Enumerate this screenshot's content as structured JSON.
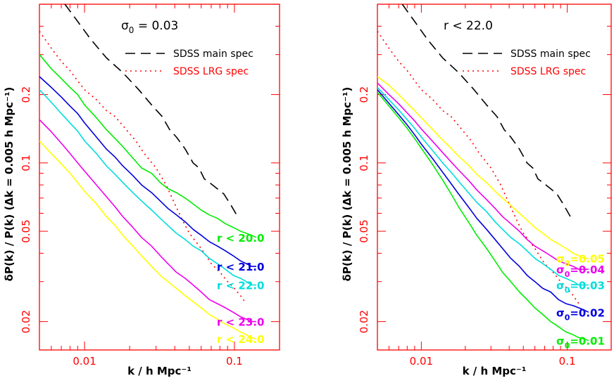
{
  "chart_data": [
    {
      "type": "line",
      "scale": "log-log",
      "title": "",
      "annotation": {
        "symbol": "σ",
        "sub": "0",
        "rest": " = 0.03"
      },
      "xlabel": "k / h Mpc⁻¹",
      "ylabel": "δP(k) / P(k)   (Δk = 0.005 h Mpc⁻¹)",
      "xlim": [
        0.005,
        0.2
      ],
      "ylim": [
        0.015,
        0.5
      ],
      "xticks": [
        {
          "value": 0.01,
          "label": "0.01"
        },
        {
          "value": 0.1,
          "label": "0.1"
        }
      ],
      "yticks": [
        {
          "value": 0.02,
          "label": "0.02"
        },
        {
          "value": 0.05,
          "label": "0.05"
        },
        {
          "value": 0.1,
          "label": "0.1"
        },
        {
          "value": 0.2,
          "label": "0.2"
        }
      ],
      "legend": [
        {
          "label": "SDSS main spec",
          "style": "dashed",
          "color": "#000000"
        },
        {
          "label": "SDSS LRG spec",
          "style": "dotted",
          "color": "#ff0000"
        }
      ],
      "series": [
        {
          "name": "SDSS main spec",
          "style": "dashed",
          "color": "#000000",
          "x": [
            0.0074,
            0.009,
            0.011,
            0.014,
            0.018,
            0.023,
            0.028,
            0.033,
            0.037,
            0.041,
            0.047,
            0.053,
            0.058,
            0.063,
            0.068,
            0.075,
            0.085,
            0.095,
            0.105
          ],
          "y": [
            0.5,
            0.42,
            0.35,
            0.29,
            0.25,
            0.21,
            0.18,
            0.16,
            0.14,
            0.13,
            0.115,
            0.1,
            0.095,
            0.085,
            0.082,
            0.078,
            0.073,
            0.065,
            0.058
          ]
        },
        {
          "name": "SDSS LRG spec",
          "style": "dotted",
          "color": "#ff0000",
          "x": [
            0.005,
            0.006,
            0.007,
            0.008,
            0.009,
            0.01,
            0.012,
            0.014,
            0.016,
            0.019,
            0.022,
            0.025,
            0.03,
            0.035,
            0.04,
            0.045,
            0.05,
            0.06,
            0.07,
            0.08,
            0.09,
            0.1,
            0.11,
            0.12
          ],
          "y": [
            0.38,
            0.32,
            0.28,
            0.255,
            0.23,
            0.21,
            0.19,
            0.17,
            0.16,
            0.14,
            0.125,
            0.11,
            0.095,
            0.08,
            0.066,
            0.056,
            0.049,
            0.042,
            0.036,
            0.033,
            0.03,
            0.028,
            0.026,
            0.024
          ]
        },
        {
          "name": "r < 20.0",
          "color": "#00ee00",
          "x": [
            0.005,
            0.006,
            0.007,
            0.008,
            0.009,
            0.01,
            0.012,
            0.014,
            0.016,
            0.018,
            0.021,
            0.024,
            0.028,
            0.032,
            0.036,
            0.041,
            0.047,
            0.053,
            0.06,
            0.068,
            0.077,
            0.087,
            0.098,
            0.11,
            0.12,
            0.13,
            0.14
          ],
          "y": [
            0.3,
            0.26,
            0.235,
            0.215,
            0.2,
            0.18,
            0.158,
            0.14,
            0.128,
            0.118,
            0.105,
            0.095,
            0.09,
            0.082,
            0.077,
            0.074,
            0.07,
            0.066,
            0.062,
            0.059,
            0.057,
            0.054,
            0.052,
            0.05,
            0.049,
            0.048,
            0.047
          ]
        },
        {
          "name": "r < 21.0",
          "color": "#0000dd",
          "x": [
            0.005,
            0.006,
            0.007,
            0.008,
            0.009,
            0.01,
            0.012,
            0.014,
            0.016,
            0.018,
            0.021,
            0.024,
            0.028,
            0.032,
            0.036,
            0.041,
            0.047,
            0.053,
            0.06,
            0.068,
            0.077,
            0.087,
            0.098,
            0.11,
            0.12,
            0.13,
            0.14
          ],
          "y": [
            0.24,
            0.215,
            0.195,
            0.178,
            0.165,
            0.15,
            0.13,
            0.115,
            0.106,
            0.097,
            0.088,
            0.08,
            0.074,
            0.068,
            0.063,
            0.059,
            0.055,
            0.051,
            0.048,
            0.045,
            0.043,
            0.041,
            0.039,
            0.037,
            0.036,
            0.035,
            0.035
          ]
        },
        {
          "name": "r < 22.0",
          "color": "#00dddd",
          "x": [
            0.005,
            0.006,
            0.007,
            0.008,
            0.009,
            0.01,
            0.012,
            0.014,
            0.016,
            0.018,
            0.021,
            0.024,
            0.028,
            0.032,
            0.036,
            0.041,
            0.047,
            0.053,
            0.06,
            0.068,
            0.077,
            0.087,
            0.098,
            0.11,
            0.12,
            0.13,
            0.14
          ],
          "y": [
            0.21,
            0.185,
            0.165,
            0.15,
            0.138,
            0.125,
            0.11,
            0.097,
            0.089,
            0.082,
            0.074,
            0.068,
            0.062,
            0.057,
            0.053,
            0.049,
            0.046,
            0.043,
            0.041,
            0.038,
            0.036,
            0.034,
            0.032,
            0.031,
            0.03,
            0.029,
            0.029
          ]
        },
        {
          "name": "r < 23.0",
          "color": "#ee00ee",
          "x": [
            0.005,
            0.006,
            0.007,
            0.008,
            0.009,
            0.01,
            0.012,
            0.014,
            0.016,
            0.018,
            0.021,
            0.024,
            0.028,
            0.032,
            0.036,
            0.041,
            0.047,
            0.053,
            0.06,
            0.068,
            0.077,
            0.087,
            0.098,
            0.11,
            0.12,
            0.13,
            0.14
          ],
          "y": [
            0.155,
            0.137,
            0.122,
            0.11,
            0.1,
            0.092,
            0.08,
            0.071,
            0.064,
            0.058,
            0.052,
            0.047,
            0.043,
            0.039,
            0.036,
            0.033,
            0.031,
            0.029,
            0.027,
            0.025,
            0.024,
            0.023,
            0.022,
            0.021,
            0.0205,
            0.02,
            0.02
          ]
        },
        {
          "name": "r < 24.0",
          "color": "#ffff00",
          "x": [
            0.005,
            0.006,
            0.007,
            0.008,
            0.009,
            0.01,
            0.012,
            0.014,
            0.016,
            0.018,
            0.021,
            0.024,
            0.028,
            0.032,
            0.036,
            0.041,
            0.047,
            0.053,
            0.06,
            0.068,
            0.077,
            0.087,
            0.098,
            0.11,
            0.12,
            0.13,
            0.14
          ],
          "y": [
            0.125,
            0.11,
            0.099,
            0.09,
            0.082,
            0.075,
            0.066,
            0.058,
            0.053,
            0.048,
            0.043,
            0.039,
            0.035,
            0.032,
            0.03,
            0.028,
            0.026,
            0.0245,
            0.023,
            0.0215,
            0.0205,
            0.0195,
            0.0188,
            0.018,
            0.0175,
            0.017,
            0.0168
          ]
        }
      ]
    },
    {
      "type": "line",
      "scale": "log-log",
      "title": "",
      "annotation": {
        "symbol": "",
        "sub": "",
        "rest": "r < 22.0"
      },
      "xlabel": "k / h Mpc⁻¹",
      "ylabel": "δP(k) / P(k)   (Δk = 0.005 h Mpc⁻¹)",
      "xlim": [
        0.005,
        0.2
      ],
      "ylim": [
        0.015,
        0.5
      ],
      "xticks": [
        {
          "value": 0.01,
          "label": "0.01"
        },
        {
          "value": 0.1,
          "label": "0.1"
        }
      ],
      "yticks": [
        {
          "value": 0.02,
          "label": "0.02"
        },
        {
          "value": 0.05,
          "label": "0.05"
        },
        {
          "value": 0.1,
          "label": "0.1"
        },
        {
          "value": 0.2,
          "label": "0.2"
        }
      ],
      "legend": [
        {
          "label": "SDSS main spec",
          "style": "dashed",
          "color": "#000000"
        },
        {
          "label": "SDSS LRG spec",
          "style": "dotted",
          "color": "#ff0000"
        }
      ],
      "series": [
        {
          "name": "SDSS main spec",
          "style": "dashed",
          "color": "#000000",
          "x": [
            0.0074,
            0.009,
            0.011,
            0.014,
            0.018,
            0.023,
            0.028,
            0.033,
            0.037,
            0.041,
            0.047,
            0.053,
            0.058,
            0.063,
            0.068,
            0.075,
            0.085,
            0.095,
            0.105
          ],
          "y": [
            0.5,
            0.42,
            0.35,
            0.29,
            0.25,
            0.21,
            0.18,
            0.16,
            0.14,
            0.13,
            0.115,
            0.1,
            0.095,
            0.085,
            0.082,
            0.078,
            0.073,
            0.065,
            0.058
          ]
        },
        {
          "name": "SDSS LRG spec",
          "style": "dotted",
          "color": "#ff0000",
          "x": [
            0.005,
            0.006,
            0.007,
            0.008,
            0.009,
            0.01,
            0.012,
            0.014,
            0.016,
            0.019,
            0.022,
            0.025,
            0.03,
            0.035,
            0.04,
            0.045,
            0.05,
            0.06,
            0.07,
            0.08,
            0.09,
            0.1,
            0.11,
            0.12
          ],
          "y": [
            0.38,
            0.32,
            0.28,
            0.255,
            0.23,
            0.21,
            0.19,
            0.17,
            0.16,
            0.14,
            0.125,
            0.11,
            0.095,
            0.08,
            0.066,
            0.056,
            0.049,
            0.042,
            0.036,
            0.033,
            0.03,
            0.028,
            0.026,
            0.024
          ]
        },
        {
          "name": "σ0=0.05",
          "label": {
            "symbol": "σ",
            "sub": "0",
            "rest": "=0.05"
          },
          "color": "#ffff00",
          "x": [
            0.005,
            0.006,
            0.007,
            0.008,
            0.009,
            0.01,
            0.012,
            0.014,
            0.016,
            0.018,
            0.021,
            0.024,
            0.028,
            0.032,
            0.036,
            0.041,
            0.047,
            0.053,
            0.06,
            0.068,
            0.077,
            0.087,
            0.098,
            0.11,
            0.12,
            0.13,
            0.14
          ],
          "y": [
            0.24,
            0.22,
            0.2,
            0.183,
            0.17,
            0.158,
            0.14,
            0.126,
            0.116,
            0.107,
            0.098,
            0.089,
            0.082,
            0.075,
            0.07,
            0.065,
            0.06,
            0.056,
            0.052,
            0.049,
            0.046,
            0.044,
            0.042,
            0.04,
            0.039,
            0.038,
            0.038
          ]
        },
        {
          "name": "σ0=0.04",
          "label": {
            "symbol": "σ",
            "sub": "0",
            "rest": "=0.04"
          },
          "color": "#ee00ee",
          "x": [
            0.005,
            0.006,
            0.007,
            0.008,
            0.009,
            0.01,
            0.012,
            0.014,
            0.016,
            0.018,
            0.021,
            0.024,
            0.028,
            0.032,
            0.036,
            0.041,
            0.047,
            0.053,
            0.06,
            0.068,
            0.077,
            0.087,
            0.098,
            0.11,
            0.12,
            0.13,
            0.14
          ],
          "y": [
            0.225,
            0.2,
            0.182,
            0.166,
            0.153,
            0.141,
            0.124,
            0.111,
            0.101,
            0.093,
            0.084,
            0.076,
            0.069,
            0.063,
            0.058,
            0.054,
            0.05,
            0.046,
            0.043,
            0.041,
            0.039,
            0.037,
            0.036,
            0.035,
            0.034,
            0.034,
            0.034
          ]
        },
        {
          "name": "σ0=0.03",
          "label": {
            "symbol": "σ",
            "sub": "0",
            "rest": "=0.03"
          },
          "color": "#00dddd",
          "x": [
            0.005,
            0.006,
            0.007,
            0.008,
            0.009,
            0.01,
            0.012,
            0.014,
            0.016,
            0.018,
            0.021,
            0.024,
            0.028,
            0.032,
            0.036,
            0.041,
            0.047,
            0.053,
            0.06,
            0.068,
            0.077,
            0.087,
            0.098,
            0.11,
            0.12,
            0.13,
            0.14
          ],
          "y": [
            0.215,
            0.19,
            0.171,
            0.155,
            0.142,
            0.13,
            0.113,
            0.1,
            0.091,
            0.083,
            0.074,
            0.067,
            0.061,
            0.055,
            0.051,
            0.047,
            0.044,
            0.041,
            0.038,
            0.036,
            0.034,
            0.032,
            0.031,
            0.03,
            0.029,
            0.029,
            0.029
          ]
        },
        {
          "name": "σ0=0.02",
          "label": {
            "symbol": "σ",
            "sub": "0",
            "rest": "=0.02"
          },
          "color": "#0000dd",
          "x": [
            0.005,
            0.006,
            0.007,
            0.008,
            0.009,
            0.01,
            0.012,
            0.014,
            0.016,
            0.018,
            0.021,
            0.024,
            0.028,
            0.032,
            0.036,
            0.041,
            0.047,
            0.053,
            0.06,
            0.068,
            0.077,
            0.087,
            0.098,
            0.11,
            0.12,
            0.13,
            0.14
          ],
          "y": [
            0.21,
            0.183,
            0.163,
            0.147,
            0.133,
            0.121,
            0.104,
            0.091,
            0.081,
            0.073,
            0.064,
            0.057,
            0.051,
            0.046,
            0.042,
            0.038,
            0.035,
            0.032,
            0.03,
            0.028,
            0.027,
            0.025,
            0.024,
            0.0235,
            0.023,
            0.0225,
            0.022
          ]
        },
        {
          "name": "σ0=0.01",
          "label": {
            "symbol": "σ",
            "sub": "0",
            "rest": "=0.01"
          },
          "color": "#00ee00",
          "x": [
            0.005,
            0.006,
            0.007,
            0.008,
            0.009,
            0.01,
            0.012,
            0.014,
            0.016,
            0.018,
            0.021,
            0.024,
            0.028,
            0.032,
            0.036,
            0.041,
            0.047,
            0.053,
            0.06,
            0.068,
            0.077,
            0.087,
            0.098,
            0.11,
            0.12,
            0.13,
            0.14
          ],
          "y": [
            0.205,
            0.178,
            0.158,
            0.142,
            0.128,
            0.116,
            0.098,
            0.084,
            0.073,
            0.064,
            0.055,
            0.048,
            0.042,
            0.037,
            0.033,
            0.03,
            0.027,
            0.025,
            0.023,
            0.0215,
            0.02,
            0.019,
            0.018,
            0.0175,
            0.017,
            0.0168,
            0.0165
          ]
        }
      ]
    }
  ]
}
